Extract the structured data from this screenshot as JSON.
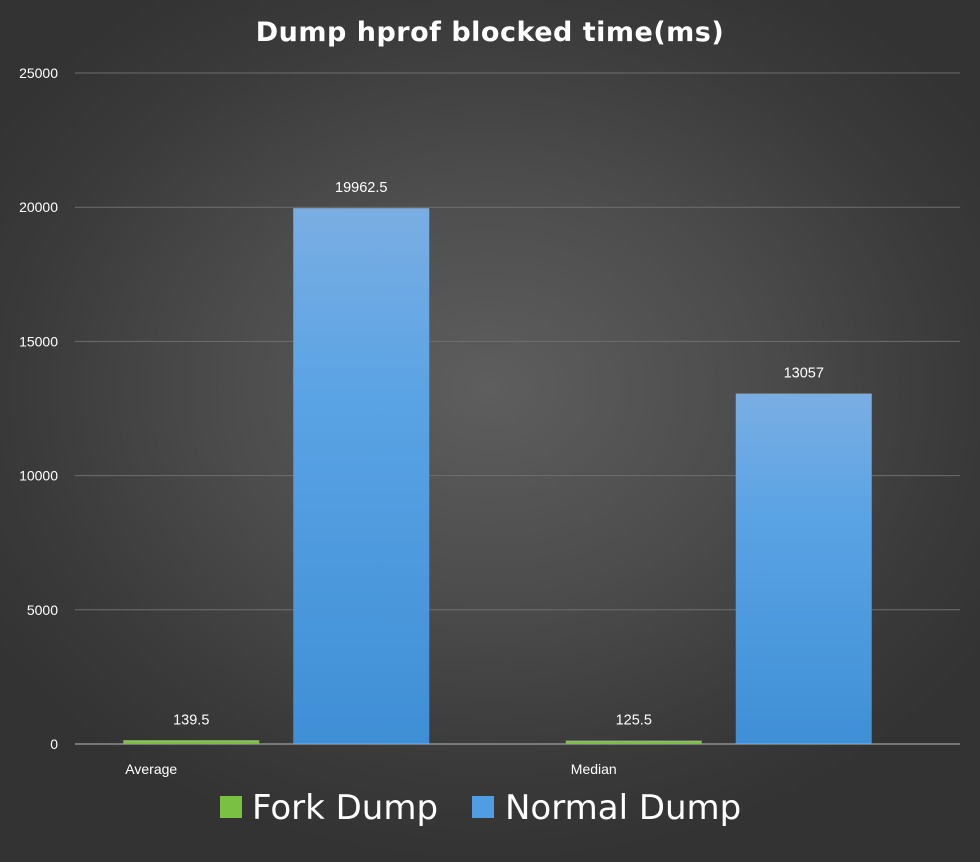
{
  "chart_data": {
    "type": "bar",
    "title": "Dump hprof blocked time(ms)",
    "categories": [
      "Average",
      "Median"
    ],
    "series": [
      {
        "name": "Fork Dump",
        "values": [
          139.5,
          125.5
        ],
        "color": "#7ac143"
      },
      {
        "name": "Normal Dump",
        "values": [
          19962.5,
          13057
        ],
        "color": "#4f9ee3"
      }
    ],
    "data_labels": [
      [
        "139.5",
        "125.5"
      ],
      [
        "19962.5",
        "13057"
      ]
    ],
    "ylim": [
      0,
      25000
    ],
    "yticks": [
      0,
      5000,
      10000,
      15000,
      20000,
      25000
    ],
    "ytick_labels": [
      "0",
      "5000",
      "10000",
      "15000",
      "20000",
      "25000"
    ],
    "grid": true,
    "legend_position": "bottom",
    "xlabel": "",
    "ylabel": ""
  }
}
